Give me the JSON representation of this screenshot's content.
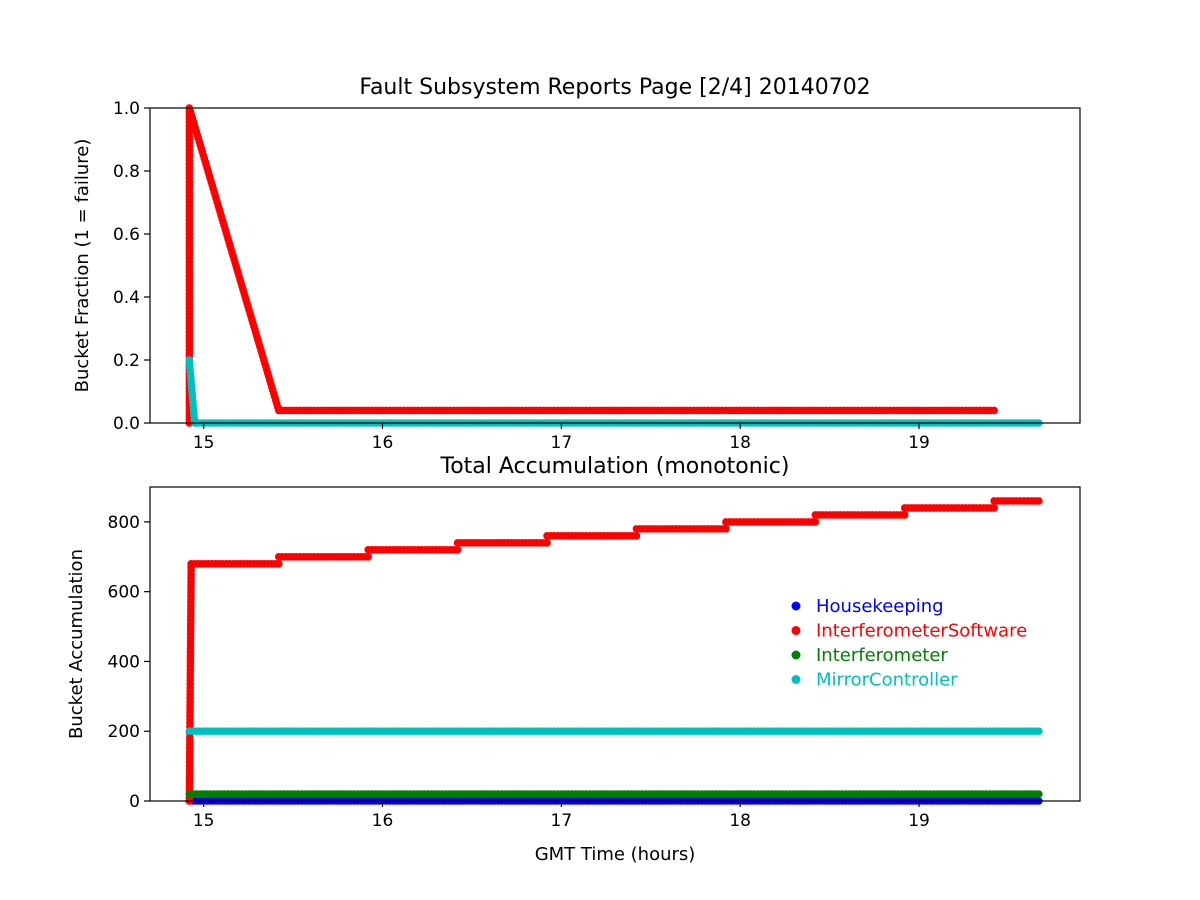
{
  "chart_data": [
    {
      "type": "scatter",
      "title": "Fault Subsystem Reports Page [2/4] 20140702",
      "xlabel": "",
      "ylabel": "Bucket Fraction (1 = failure)",
      "xlim": [
        14.7,
        19.9
      ],
      "ylim": [
        0.0,
        1.0
      ],
      "xticks": [
        "15",
        "16",
        "17",
        "18",
        "19"
      ],
      "yticks": [
        "0.0",
        "0.2",
        "0.4",
        "0.6",
        "0.8",
        "1.0"
      ],
      "grid": false,
      "series": [
        {
          "name": "InterferometerSoftware",
          "color": "#ff0000",
          "points": [
            [
              14.92,
              0.0
            ],
            [
              14.92,
              1.0
            ],
            [
              15.42,
              0.04
            ],
            [
              15.92,
              0.04
            ],
            [
              16.42,
              0.04
            ],
            [
              16.92,
              0.04
            ],
            [
              17.42,
              0.04
            ],
            [
              17.92,
              0.04
            ],
            [
              18.42,
              0.04
            ],
            [
              18.92,
              0.04
            ],
            [
              19.42,
              0.04
            ]
          ]
        },
        {
          "name": "MirrorController",
          "color": "#00bfbf",
          "points": [
            [
              14.92,
              0.2
            ],
            [
              14.95,
              0.0
            ],
            [
              19.67,
              0.0
            ]
          ]
        }
      ]
    },
    {
      "type": "scatter",
      "title": "Total Accumulation (monotonic)",
      "xlabel": "GMT Time (hours)",
      "ylabel": "Bucket Accumulation",
      "xlim": [
        14.7,
        19.9
      ],
      "ylim": [
        0,
        900
      ],
      "xticks": [
        "15",
        "16",
        "17",
        "18",
        "19"
      ],
      "yticks": [
        "0",
        "200",
        "400",
        "600",
        "800"
      ],
      "grid": false,
      "legend_position": "right",
      "series": [
        {
          "name": "Housekeeping",
          "color": "#0000ff",
          "points": [
            [
              14.92,
              0
            ],
            [
              19.67,
              0
            ]
          ]
        },
        {
          "name": "InterferometerSoftware",
          "color": "#ff0000",
          "points": [
            [
              14.92,
              0
            ],
            [
              14.93,
              680
            ],
            [
              15.42,
              680
            ],
            [
              15.42,
              700
            ],
            [
              15.92,
              700
            ],
            [
              15.92,
              720
            ],
            [
              16.42,
              720
            ],
            [
              16.42,
              740
            ],
            [
              16.92,
              740
            ],
            [
              16.92,
              760
            ],
            [
              17.42,
              760
            ],
            [
              17.42,
              780
            ],
            [
              17.92,
              780
            ],
            [
              17.92,
              800
            ],
            [
              18.42,
              800
            ],
            [
              18.42,
              820
            ],
            [
              18.92,
              820
            ],
            [
              18.92,
              840
            ],
            [
              19.42,
              840
            ],
            [
              19.42,
              860
            ],
            [
              19.67,
              860
            ]
          ]
        },
        {
          "name": "Interferometer",
          "color": "#008000",
          "points": [
            [
              14.92,
              20
            ],
            [
              19.67,
              20
            ]
          ]
        },
        {
          "name": "MirrorController",
          "color": "#00bfbf",
          "points": [
            [
              14.92,
              200
            ],
            [
              19.67,
              200
            ]
          ]
        }
      ]
    }
  ]
}
